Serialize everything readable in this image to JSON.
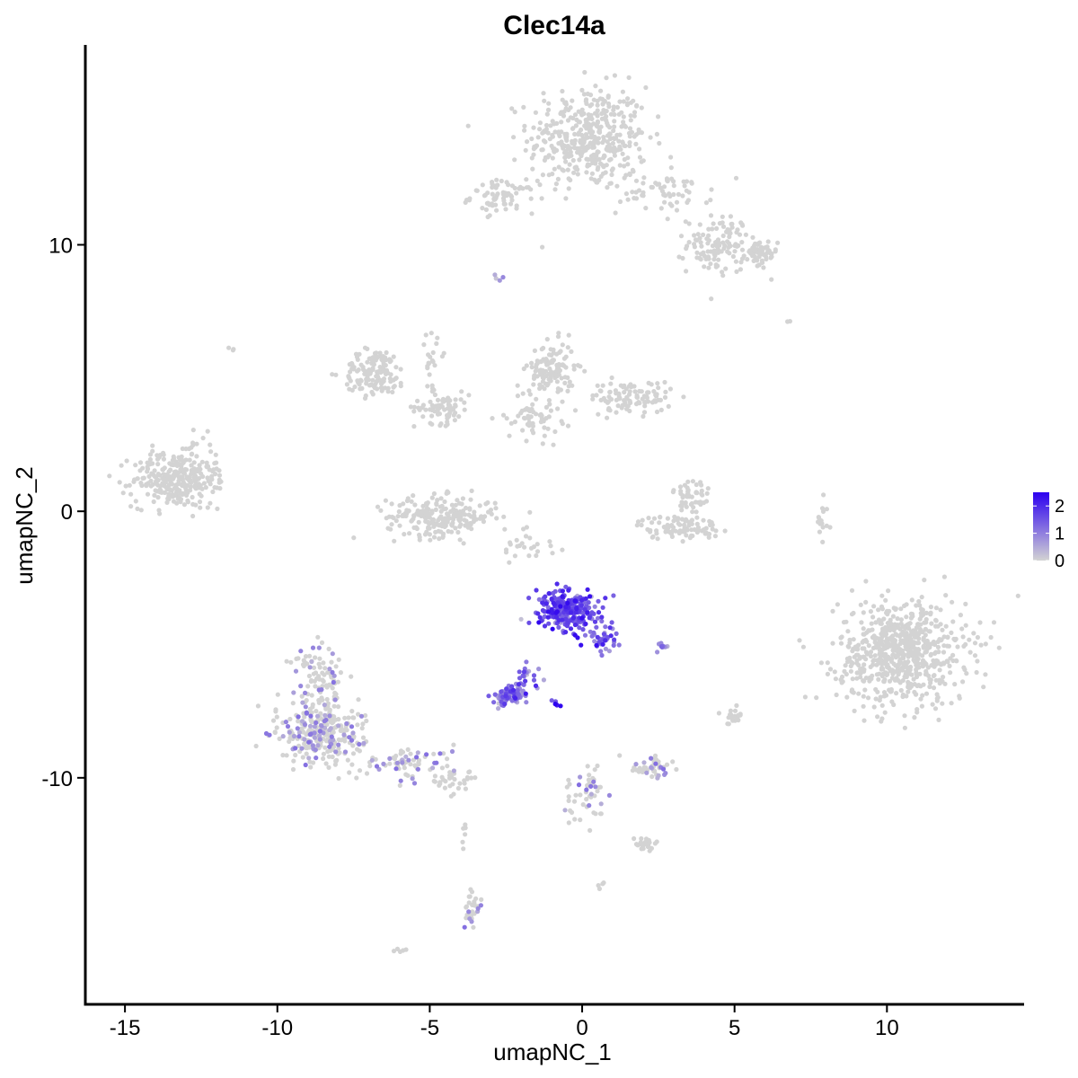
{
  "chart_data": {
    "type": "scatter",
    "title": "Clec14a",
    "xlabel": "umapNC_1",
    "ylabel": "umapNC_2",
    "xlim": [
      -16.3,
      14.5
    ],
    "ylim": [
      -18.5,
      17.5
    ],
    "x_ticks": [
      -15,
      -10,
      -5,
      0,
      5,
      10
    ],
    "y_ticks": [
      -10,
      0,
      10
    ],
    "x_tick_labels": [
      "-15",
      "-10",
      "-5",
      "0",
      "5",
      "10"
    ],
    "y_tick_labels": [
      "-10",
      "0",
      "10"
    ],
    "grid": false,
    "legend_position": "right",
    "color_scale": {
      "low_color": "#d3d3d3",
      "high_color": "#2c00f0",
      "min": 0,
      "max": 2.5,
      "labels": [
        "2",
        "1",
        "0"
      ],
      "label_values": [
        2,
        1,
        0
      ]
    },
    "clusters": [
      {
        "cx": 0.2,
        "cy": 14.0,
        "sx": 1.3,
        "sy": 1.3,
        "n": 420,
        "expr": 0
      },
      {
        "cx": -2.6,
        "cy": 11.8,
        "sx": 0.7,
        "sy": 0.4,
        "n": 70,
        "expr": 0
      },
      {
        "cx": 2.8,
        "cy": 12.0,
        "sx": 1.0,
        "sy": 0.5,
        "n": 60,
        "expr": 0
      },
      {
        "cx": 4.5,
        "cy": 10.0,
        "sx": 0.7,
        "sy": 0.7,
        "n": 120,
        "expr": 0
      },
      {
        "cx": 5.8,
        "cy": 9.6,
        "sx": 0.4,
        "sy": 0.4,
        "n": 50,
        "expr": 0
      },
      {
        "cx": -13.4,
        "cy": 1.2,
        "sx": 0.9,
        "sy": 0.7,
        "n": 260,
        "expr": 0
      },
      {
        "cx": -12.4,
        "cy": 1.5,
        "sx": 0.4,
        "sy": 1.0,
        "n": 40,
        "expr": 0
      },
      {
        "cx": -6.8,
        "cy": 5.2,
        "sx": 0.7,
        "sy": 0.6,
        "n": 140,
        "expr": 0
      },
      {
        "cx": -4.6,
        "cy": 3.9,
        "sx": 0.6,
        "sy": 0.4,
        "n": 70,
        "expr": 0
      },
      {
        "cx": -4.6,
        "cy": -0.2,
        "sx": 1.2,
        "sy": 0.5,
        "n": 230,
        "expr": 0
      },
      {
        "cx": -1.0,
        "cy": 5.3,
        "sx": 0.5,
        "sy": 0.7,
        "n": 120,
        "expr": 0
      },
      {
        "cx": 1.6,
        "cy": 4.3,
        "sx": 0.9,
        "sy": 0.4,
        "n": 100,
        "expr": 0
      },
      {
        "cx": -1.6,
        "cy": 3.6,
        "sx": 0.6,
        "sy": 0.6,
        "n": 60,
        "expr": 0
      },
      {
        "cx": 3.2,
        "cy": -0.6,
        "sx": 0.9,
        "sy": 0.3,
        "n": 90,
        "expr": 0
      },
      {
        "cx": 3.6,
        "cy": 0.5,
        "sx": 0.4,
        "sy": 0.6,
        "n": 50,
        "expr": 0
      },
      {
        "cx": 10.5,
        "cy": -5.3,
        "sx": 1.4,
        "sy": 1.3,
        "n": 680,
        "expr": 0
      },
      {
        "cx": -8.6,
        "cy": -8.3,
        "sx": 0.9,
        "sy": 0.8,
        "n": 300,
        "expr": 0.05
      },
      {
        "cx": -8.7,
        "cy": -6.2,
        "sx": 0.5,
        "sy": 0.8,
        "n": 80,
        "expr": 0.05
      },
      {
        "cx": -5.7,
        "cy": -9.4,
        "sx": 1.0,
        "sy": 0.4,
        "n": 70,
        "expr": 0.05
      },
      {
        "cx": -4.2,
        "cy": -10.2,
        "sx": 0.5,
        "sy": 0.3,
        "n": 30,
        "expr": 0
      },
      {
        "cx": -0.5,
        "cy": -3.7,
        "sx": 0.6,
        "sy": 0.5,
        "n": 260,
        "expr": 1.6
      },
      {
        "cx": 0.7,
        "cy": -4.8,
        "sx": 0.3,
        "sy": 0.4,
        "n": 40,
        "expr": 1.3
      },
      {
        "cx": -2.4,
        "cy": -6.9,
        "sx": 0.35,
        "sy": 0.25,
        "n": 90,
        "expr": 1.0
      },
      {
        "cx": -1.8,
        "cy": -6.2,
        "sx": 0.3,
        "sy": 0.3,
        "n": 20,
        "expr": 1.2
      },
      {
        "cx": 2.7,
        "cy": -5.1,
        "sx": 0.2,
        "sy": 0.1,
        "n": 10,
        "expr": 0.9
      },
      {
        "cx": -0.9,
        "cy": -7.2,
        "sx": 0.1,
        "sy": 0.1,
        "n": 6,
        "expr": 1.8
      },
      {
        "cx": 2.3,
        "cy": -9.6,
        "sx": 0.5,
        "sy": 0.3,
        "n": 45,
        "expr": 0.02
      },
      {
        "cx": 0.1,
        "cy": -10.6,
        "sx": 0.4,
        "sy": 0.8,
        "n": 50,
        "expr": 0.02
      },
      {
        "cx": 2.1,
        "cy": -12.5,
        "sx": 0.3,
        "sy": 0.2,
        "n": 25,
        "expr": 0
      },
      {
        "cx": -3.6,
        "cy": -14.9,
        "sx": 0.2,
        "sy": 0.5,
        "n": 30,
        "expr": 0.1
      },
      {
        "cx": -3.9,
        "cy": -12.2,
        "sx": 0.1,
        "sy": 0.3,
        "n": 6,
        "expr": 0.1
      },
      {
        "cx": 5.0,
        "cy": -7.6,
        "sx": 0.3,
        "sy": 0.3,
        "n": 20,
        "expr": 0
      },
      {
        "cx": 7.9,
        "cy": -0.3,
        "sx": 0.15,
        "sy": 0.6,
        "n": 15,
        "expr": 0
      },
      {
        "cx": -4.9,
        "cy": 5.2,
        "sx": 0.2,
        "sy": 1.3,
        "n": 25,
        "expr": 0
      },
      {
        "cx": -1.7,
        "cy": -1.3,
        "sx": 0.7,
        "sy": 0.5,
        "n": 25,
        "expr": 0
      },
      {
        "cx": -2.8,
        "cy": 8.8,
        "sx": 0.1,
        "sy": 0.1,
        "n": 4,
        "expr": 0.3
      },
      {
        "cx": -11.5,
        "cy": 6.1,
        "sx": 0.1,
        "sy": 0.1,
        "n": 3,
        "expr": 0
      },
      {
        "cx": -6.0,
        "cy": -16.5,
        "sx": 0.2,
        "sy": 0.1,
        "n": 5,
        "expr": 0
      },
      {
        "cx": 0.6,
        "cy": -14.0,
        "sx": 0.1,
        "sy": 0.1,
        "n": 4,
        "expr": 0
      },
      {
        "cx": 6.8,
        "cy": 7.1,
        "sx": 0.05,
        "sy": 0.05,
        "n": 2,
        "expr": 0
      }
    ]
  }
}
